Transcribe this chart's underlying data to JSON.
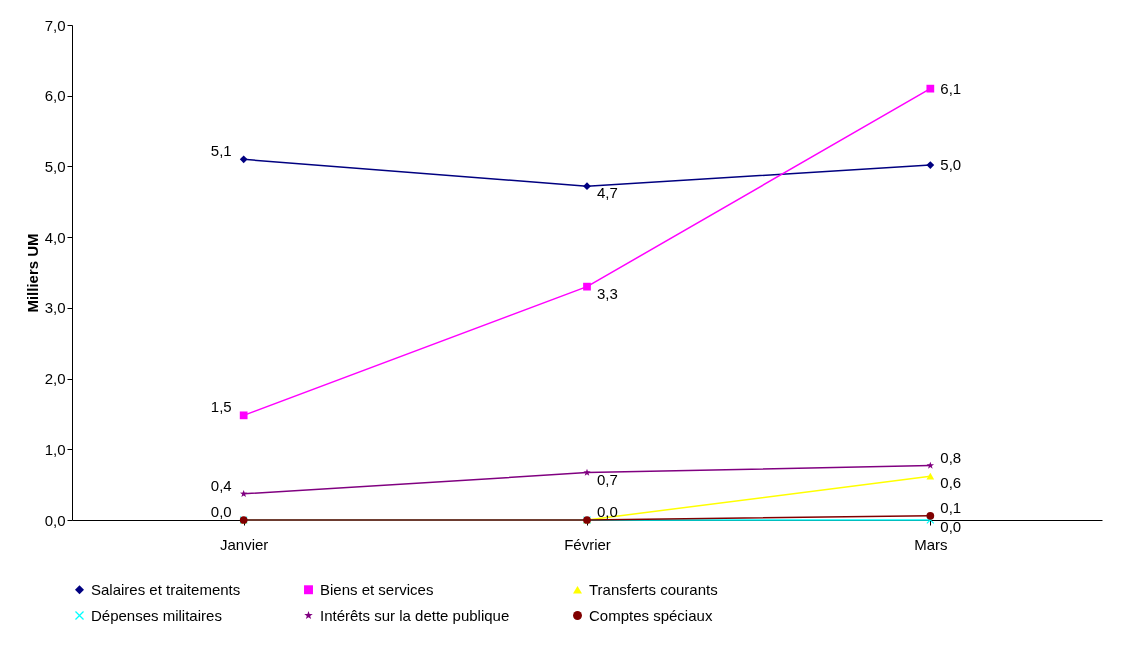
{
  "chart_data": {
    "type": "line",
    "ylabel": "Milliers UM",
    "categories": [
      "Janvier",
      "Février",
      "Mars"
    ],
    "ylim": [
      0,
      7
    ],
    "yticks": [
      {
        "value": 0,
        "label": "0,0"
      },
      {
        "value": 1,
        "label": "1,0"
      },
      {
        "value": 2,
        "label": "2,0"
      },
      {
        "value": 3,
        "label": "3,0"
      },
      {
        "value": 4,
        "label": "4,0"
      },
      {
        "value": 5,
        "label": "5,0"
      },
      {
        "value": 6,
        "label": "6,0"
      },
      {
        "value": 7,
        "label": "7,0"
      }
    ],
    "grid": false,
    "legend": "bottom",
    "series": [
      {
        "name": "Salaires et traitements",
        "color": "#000080",
        "marker": "diamond",
        "values": [
          5.1,
          4.72,
          5.02
        ],
        "value_labels": [
          "5,1",
          "4,7",
          "5,0"
        ]
      },
      {
        "name": "Biens et services",
        "color": "#ff00ff",
        "marker": "square",
        "values": [
          1.48,
          3.3,
          6.1
        ],
        "value_labels": [
          "1,5",
          "3,3",
          "6,1"
        ]
      },
      {
        "name": "Transferts courants",
        "color": "#ffff00",
        "marker": "triangle",
        "values": [
          0,
          0,
          0.62
        ],
        "value_labels": [
          null,
          null,
          "0,6"
        ]
      },
      {
        "name": "Dépenses militaires",
        "color": "#00ffff",
        "marker": "cross",
        "values": [
          0,
          0,
          0
        ],
        "value_labels": [
          null,
          null,
          "0,0"
        ]
      },
      {
        "name": "Intérêts sur la dette publique",
        "color": "#800080",
        "marker": "star",
        "values": [
          0.37,
          0.67,
          0.77
        ],
        "value_labels": [
          "0,4",
          "0,7",
          "0,8"
        ]
      },
      {
        "name": "Comptes spéciaux",
        "color": "#800000",
        "marker": "circle",
        "values": [
          0,
          0,
          0.06
        ],
        "value_labels": [
          "0,0",
          "0,0",
          "0,1"
        ]
      }
    ]
  }
}
